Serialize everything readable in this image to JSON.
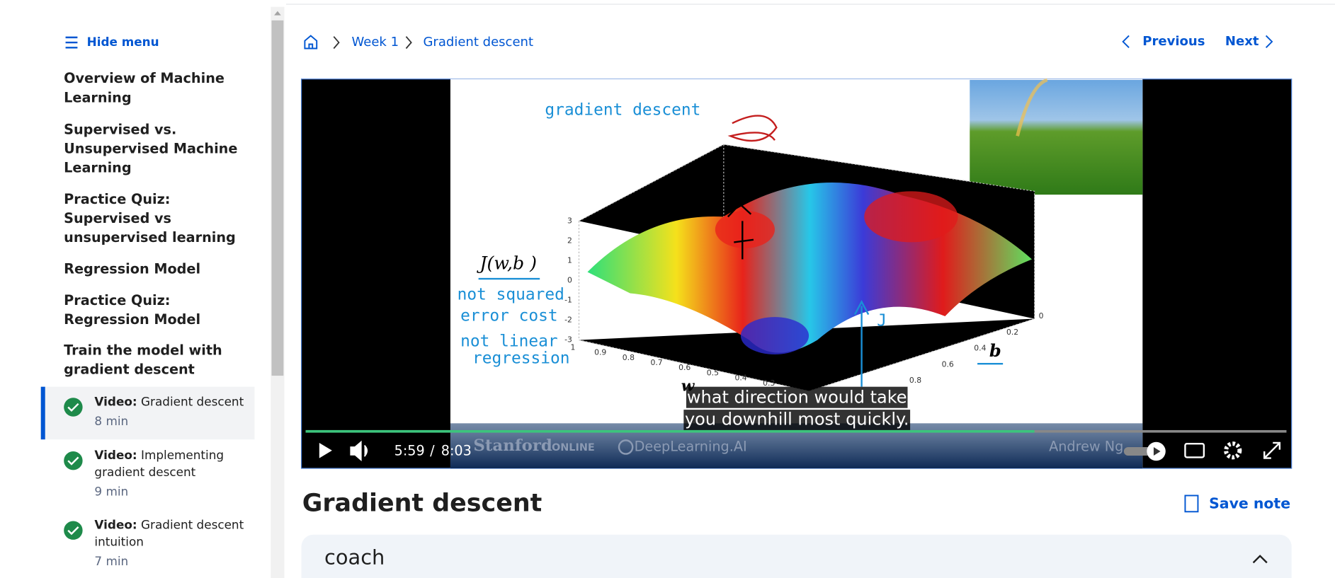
{
  "sidebar": {
    "toggle": "Hide menu",
    "sections": [
      [
        "Overview of Machine",
        "Learning"
      ],
      [
        "Supervised vs.",
        "Unsupervised Machine",
        "Learning"
      ],
      [
        "Practice Quiz:",
        "Supervised vs",
        "unsupervised learning"
      ],
      [
        "Regression Model"
      ],
      [
        "Practice Quiz:",
        "Regression Model"
      ],
      [
        "Train the model with",
        "gradient descent"
      ]
    ],
    "items": [
      {
        "kind": "Video:",
        "title": [
          "Gradient descent"
        ],
        "duration": "8 min"
      },
      {
        "kind": "Video:",
        "title": [
          "Implementing",
          "gradient descent"
        ],
        "duration": "9 min"
      },
      {
        "kind": "Video:",
        "title": [
          "Gradient descent",
          "intuition"
        ],
        "duration": "7 min"
      }
    ]
  },
  "breadcrumb": [
    "Week 1",
    "Gradient descent"
  ],
  "nav": {
    "previous": "Previous",
    "next": "Next"
  },
  "video": {
    "heading": "gradient descent",
    "cost_label": "J(w,b )",
    "notes": [
      "not squared",
      "error cost",
      "not linear",
      "regression"
    ],
    "z_ticks": [
      "3",
      "2",
      "1",
      "0",
      "-1",
      "-2",
      "-3"
    ],
    "w_ticks": [
      "1",
      "0.9",
      "0.8",
      "0.7",
      "0.6",
      "0.5",
      "0.4",
      "0.3"
    ],
    "b_ticks": [
      "0",
      "0.2",
      "0.4",
      "0.6",
      "0.8"
    ],
    "w_label": "w",
    "b_label": "b",
    "j_label": "J",
    "captions": [
      "what direction would take",
      "you downhill most quickly."
    ],
    "current_time": "5:59",
    "separator": "/",
    "duration": "8:03",
    "watermarks": {
      "stanford": "Stanford",
      "online": "ONLINE",
      "deeplearning": "DeepLearning.AI",
      "instructor": "Andrew Ng"
    }
  },
  "page_title": "Gradient descent",
  "save_note": "Save note",
  "coach": "coach"
}
